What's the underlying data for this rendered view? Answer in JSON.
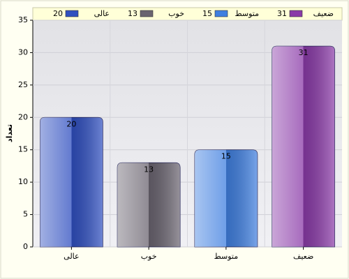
{
  "chart_data": {
    "type": "bar",
    "y_label": "تعداد",
    "categories": [
      "عالی",
      "خوب",
      "متوسط",
      "ضعیف"
    ],
    "values": [
      20,
      13,
      15,
      31
    ],
    "colors": [
      "#2f4fc0",
      "#6a6470",
      "#3f7fe0",
      "#8a3aa8"
    ],
    "ylim": [
      0,
      35
    ],
    "yticks": [
      0,
      5,
      10,
      15,
      20,
      25,
      30,
      35
    ],
    "grid": true
  }
}
